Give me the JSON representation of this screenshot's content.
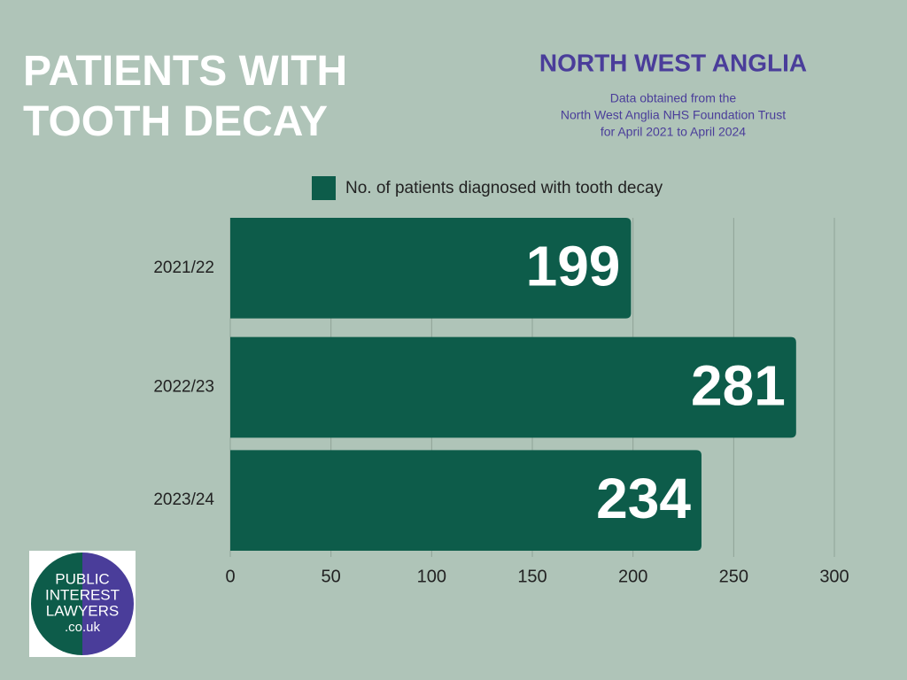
{
  "chart_data": {
    "type": "hbar",
    "title": "PATIENTS WITH TOOTH DECAY",
    "subtitle": "NORTH WEST ANGLIA",
    "source_note": [
      "Data obtained from the",
      "North West Anglia NHS Foundation Trust",
      "for April 2021 to April 2024"
    ],
    "categories": [
      "2021/22",
      "2022/23",
      "2023/24"
    ],
    "series": [
      {
        "name": "No. of patients diagnosed with tooth decay",
        "color": "#0d5c4a",
        "values": [
          199,
          281,
          234
        ]
      }
    ],
    "xlim": [
      0,
      300
    ],
    "xticks": [
      0,
      50,
      100,
      150,
      200,
      250,
      300
    ],
    "grid": true
  },
  "logo": {
    "lines": [
      "PUBLIC",
      "INTEREST",
      "LAWYERS",
      ".co.uk"
    ]
  }
}
